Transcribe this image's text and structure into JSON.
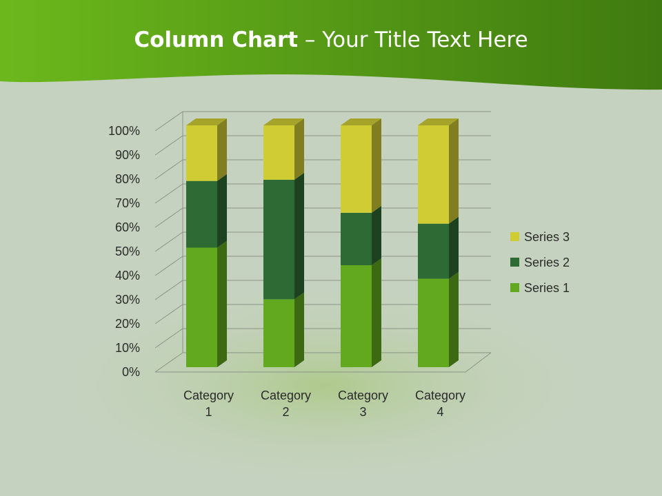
{
  "title": {
    "bold": "Column Chart",
    "rest": " – Your Title Text Here"
  },
  "colors": {
    "header": "#5aa018",
    "background": "#c5d2bf"
  },
  "chart_data": {
    "type": "bar",
    "stacking": "percent",
    "three_d": true,
    "categories": [
      [
        "Category",
        "1"
      ],
      [
        "Category",
        "2"
      ],
      [
        "Category",
        "3"
      ],
      [
        "Category",
        "4"
      ]
    ],
    "series": [
      {
        "name": "Series 1",
        "values": [
          4.3,
          2.5,
          3.5,
          4.5
        ],
        "color": "#63a91f"
      },
      {
        "name": "Series 2",
        "values": [
          2.4,
          4.4,
          1.8,
          2.8
        ],
        "color": "#2e6a34"
      },
      {
        "name": "Series 3",
        "values": [
          2,
          2,
          3,
          5
        ],
        "color": "#cfcc34"
      }
    ],
    "yticks": [
      "0%",
      "10%",
      "20%",
      "30%",
      "40%",
      "50%",
      "60%",
      "70%",
      "80%",
      "90%",
      "100%"
    ],
    "ylim": [
      0,
      100
    ],
    "grid": true,
    "legend": "right"
  }
}
